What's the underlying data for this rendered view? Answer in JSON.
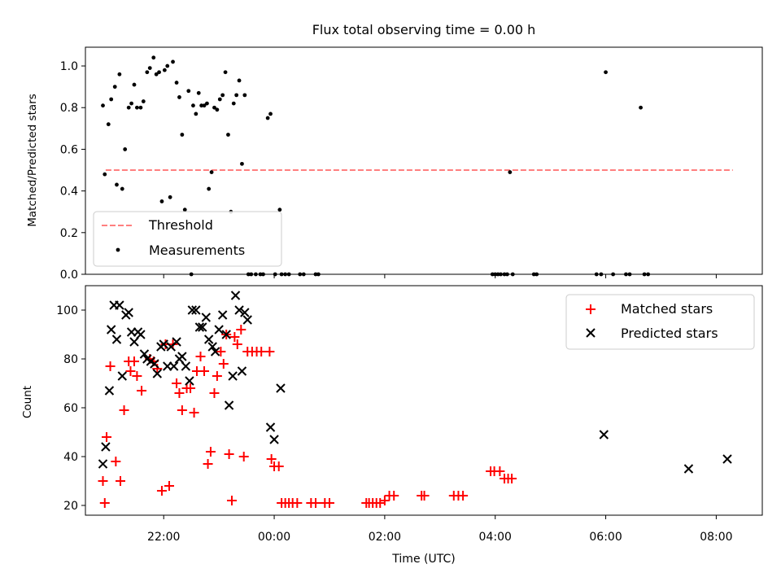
{
  "chart_data": [
    {
      "type": "scatter",
      "title": "Flux total observing time = 0.00 h",
      "xlabel": "",
      "ylabel": "Matched/Predicted stars",
      "xlim": [
        "20:35",
        "08:50"
      ],
      "ylim": [
        0,
        1.09
      ],
      "yticks": [
        0.0,
        0.2,
        0.4,
        0.6,
        0.8,
        1.0
      ],
      "ytick_labels": [
        "0.0",
        "0.2",
        "0.4",
        "0.6",
        "0.8",
        "1.0"
      ],
      "legend_position": "lower left",
      "threshold": {
        "name": "Threshold",
        "y": 0.5,
        "x_start": "20:57",
        "x_end": "08:18",
        "color": "#ff7f7f",
        "style": "dashed"
      },
      "series": [
        {
          "name": "Measurements",
          "color": "#000000",
          "marker": "dot",
          "points": [
            [
              "20:54",
              0.81
            ],
            [
              "20:56",
              0.48
            ],
            [
              "21:00",
              0.72
            ],
            [
              "21:03",
              0.84
            ],
            [
              "21:07",
              0.9
            ],
            [
              "21:09",
              0.43
            ],
            [
              "21:12",
              0.96
            ],
            [
              "21:15",
              0.41
            ],
            [
              "21:18",
              0.6
            ],
            [
              "21:22",
              0.8
            ],
            [
              "21:25",
              0.82
            ],
            [
              "21:28",
              0.91
            ],
            [
              "21:31",
              0.8
            ],
            [
              "21:35",
              0.8
            ],
            [
              "21:38",
              0.83
            ],
            [
              "21:42",
              0.97
            ],
            [
              "21:45",
              0.99
            ],
            [
              "21:49",
              1.04
            ],
            [
              "21:52",
              0.96
            ],
            [
              "21:55",
              0.97
            ],
            [
              "21:58",
              0.35
            ],
            [
              "22:01",
              0.98
            ],
            [
              "22:04",
              1.0
            ],
            [
              "22:07",
              0.37
            ],
            [
              "22:10",
              1.02
            ],
            [
              "22:14",
              0.92
            ],
            [
              "22:17",
              0.85
            ],
            [
              "22:20",
              0.67
            ],
            [
              "22:23",
              0.31
            ],
            [
              "22:27",
              0.88
            ],
            [
              "22:30",
              0.0
            ],
            [
              "22:32",
              0.81
            ],
            [
              "22:35",
              0.77
            ],
            [
              "22:38",
              0.87
            ],
            [
              "22:41",
              0.81
            ],
            [
              "22:44",
              0.81
            ],
            [
              "22:47",
              0.82
            ],
            [
              "22:49",
              0.41
            ],
            [
              "22:52",
              0.49
            ],
            [
              "22:55",
              0.8
            ],
            [
              "22:58",
              0.79
            ],
            [
              "23:01",
              0.84
            ],
            [
              "23:04",
              0.86
            ],
            [
              "23:07",
              0.97
            ],
            [
              "23:10",
              0.67
            ],
            [
              "23:13",
              0.3
            ],
            [
              "23:16",
              0.82
            ],
            [
              "23:19",
              0.86
            ],
            [
              "23:22",
              0.93
            ],
            [
              "23:25",
              0.53
            ],
            [
              "23:28",
              0.86
            ],
            [
              "23:32",
              0.0
            ],
            [
              "23:35",
              0.0
            ],
            [
              "23:40",
              0.0
            ],
            [
              "23:45",
              0.0
            ],
            [
              "23:48",
              0.0
            ],
            [
              "23:53",
              0.75
            ],
            [
              "23:56",
              0.77
            ],
            [
              "00:01",
              0.0
            ],
            [
              "00:06",
              0.31
            ],
            [
              "00:08",
              0.0
            ],
            [
              "00:12",
              0.0
            ],
            [
              "00:16",
              0.0
            ],
            [
              "00:28",
              0.0
            ],
            [
              "00:32",
              0.0
            ],
            [
              "00:45",
              0.0
            ],
            [
              "00:48",
              0.0
            ],
            [
              "03:57",
              0.0
            ],
            [
              "04:00",
              0.0
            ],
            [
              "04:03",
              0.0
            ],
            [
              "04:06",
              0.0
            ],
            [
              "04:10",
              0.0
            ],
            [
              "04:13",
              0.0
            ],
            [
              "04:16",
              0.49
            ],
            [
              "04:19",
              0.0
            ],
            [
              "04:42",
              0.0
            ],
            [
              "04:45",
              0.0
            ],
            [
              "05:50",
              0.0
            ],
            [
              "05:55",
              0.0
            ],
            [
              "06:00",
              0.97
            ],
            [
              "06:08",
              0.0
            ],
            [
              "06:22",
              0.0
            ],
            [
              "06:26",
              0.0
            ],
            [
              "06:38",
              0.8
            ],
            [
              "06:42",
              0.0
            ],
            [
              "06:46",
              0.0
            ]
          ]
        }
      ]
    },
    {
      "type": "scatter",
      "title": "",
      "xlabel": "Time (UTC)",
      "ylabel": "Count",
      "xlim": [
        "20:35",
        "08:50"
      ],
      "ylim": [
        16,
        110
      ],
      "yticks": [
        20,
        40,
        60,
        80,
        100
      ],
      "ytick_labels": [
        "20",
        "40",
        "60",
        "80",
        "100"
      ],
      "xticks": [
        "22:00",
        "00:00",
        "02:00",
        "04:00",
        "06:00",
        "08:00"
      ],
      "legend_position": "upper right",
      "series": [
        {
          "name": "Matched stars",
          "color": "#ff0000",
          "marker": "plus",
          "points": [
            [
              "20:54",
              30
            ],
            [
              "20:56",
              21
            ],
            [
              "20:58",
              48
            ],
            [
              "21:02",
              77
            ],
            [
              "21:08",
              38
            ],
            [
              "21:13",
              30
            ],
            [
              "21:17",
              59
            ],
            [
              "21:22",
              79
            ],
            [
              "21:24",
              75
            ],
            [
              "21:28",
              79
            ],
            [
              "21:31",
              73
            ],
            [
              "21:36",
              67
            ],
            [
              "21:45",
              80
            ],
            [
              "21:49",
              79
            ],
            [
              "21:53",
              76
            ],
            [
              "21:58",
              26
            ],
            [
              "22:02",
              86
            ],
            [
              "22:06",
              28
            ],
            [
              "22:10",
              86
            ],
            [
              "22:14",
              70
            ],
            [
              "22:17",
              66
            ],
            [
              "22:20",
              59
            ],
            [
              "22:25",
              68
            ],
            [
              "22:29",
              68
            ],
            [
              "22:33",
              58
            ],
            [
              "22:36",
              75
            ],
            [
              "22:40",
              81
            ],
            [
              "22:44",
              75
            ],
            [
              "22:48",
              37
            ],
            [
              "22:51",
              42
            ],
            [
              "22:55",
              66
            ],
            [
              "22:58",
              73
            ],
            [
              "23:02",
              83
            ],
            [
              "23:05",
              78
            ],
            [
              "23:08",
              90
            ],
            [
              "23:11",
              41
            ],
            [
              "23:14",
              22
            ],
            [
              "23:17",
              89
            ],
            [
              "23:20",
              86
            ],
            [
              "23:24",
              92
            ],
            [
              "23:27",
              40
            ],
            [
              "23:31",
              83
            ],
            [
              "23:36",
              83
            ],
            [
              "23:41",
              83
            ],
            [
              "23:46",
              83
            ],
            [
              "23:55",
              83
            ],
            [
              "23:57",
              39
            ],
            [
              "00:00",
              36
            ],
            [
              "00:05",
              36
            ],
            [
              "00:08",
              21
            ],
            [
              "00:12",
              21
            ],
            [
              "00:16",
              21
            ],
            [
              "00:20",
              21
            ],
            [
              "00:25",
              21
            ],
            [
              "00:40",
              21
            ],
            [
              "00:45",
              21
            ],
            [
              "00:55",
              21
            ],
            [
              "01:00",
              21
            ],
            [
              "01:40",
              21
            ],
            [
              "01:43",
              21
            ],
            [
              "01:47",
              21
            ],
            [
              "01:51",
              21
            ],
            [
              "01:55",
              21
            ],
            [
              "02:00",
              22
            ],
            [
              "02:05",
              24
            ],
            [
              "02:10",
              24
            ],
            [
              "02:40",
              24
            ],
            [
              "02:43",
              24
            ],
            [
              "03:15",
              24
            ],
            [
              "03:20",
              24
            ],
            [
              "03:25",
              24
            ],
            [
              "03:55",
              34
            ],
            [
              "03:59",
              34
            ],
            [
              "04:05",
              34
            ],
            [
              "04:10",
              31
            ],
            [
              "04:14",
              31
            ],
            [
              "04:18",
              31
            ]
          ]
        },
        {
          "name": "Predicted stars",
          "color": "#000000",
          "marker": "x",
          "points": [
            [
              "20:54",
              37
            ],
            [
              "20:57",
              44
            ],
            [
              "21:01",
              67
            ],
            [
              "21:03",
              92
            ],
            [
              "21:06",
              102
            ],
            [
              "21:09",
              88
            ],
            [
              "21:12",
              102
            ],
            [
              "21:15",
              73
            ],
            [
              "21:19",
              98
            ],
            [
              "21:22",
              99
            ],
            [
              "21:25",
              91
            ],
            [
              "21:28",
              87
            ],
            [
              "21:32",
              91
            ],
            [
              "21:35",
              90
            ],
            [
              "21:39",
              82
            ],
            [
              "21:42",
              80
            ],
            [
              "21:46",
              79
            ],
            [
              "21:50",
              78
            ],
            [
              "21:53",
              74
            ],
            [
              "21:57",
              85
            ],
            [
              "22:00",
              86
            ],
            [
              "22:04",
              77
            ],
            [
              "22:08",
              85
            ],
            [
              "22:11",
              77
            ],
            [
              "22:14",
              87
            ],
            [
              "22:17",
              80
            ],
            [
              "22:20",
              81
            ],
            [
              "22:24",
              77
            ],
            [
              "22:28",
              71
            ],
            [
              "22:31",
              100
            ],
            [
              "22:35",
              100
            ],
            [
              "22:39",
              93
            ],
            [
              "22:42",
              93
            ],
            [
              "22:46",
              97
            ],
            [
              "22:49",
              88
            ],
            [
              "22:53",
              85
            ],
            [
              "22:56",
              83
            ],
            [
              "23:00",
              92
            ],
            [
              "23:04",
              98
            ],
            [
              "23:08",
              90
            ],
            [
              "23:11",
              61
            ],
            [
              "23:15",
              73
            ],
            [
              "23:18",
              106
            ],
            [
              "23:22",
              100
            ],
            [
              "23:25",
              75
            ],
            [
              "23:28",
              99
            ],
            [
              "23:31",
              96
            ],
            [
              "23:56",
              52
            ],
            [
              "00:00",
              47
            ],
            [
              "00:07",
              68
            ],
            [
              "05:58",
              49
            ],
            [
              "07:30",
              35
            ],
            [
              "08:12",
              39
            ]
          ]
        }
      ]
    }
  ]
}
